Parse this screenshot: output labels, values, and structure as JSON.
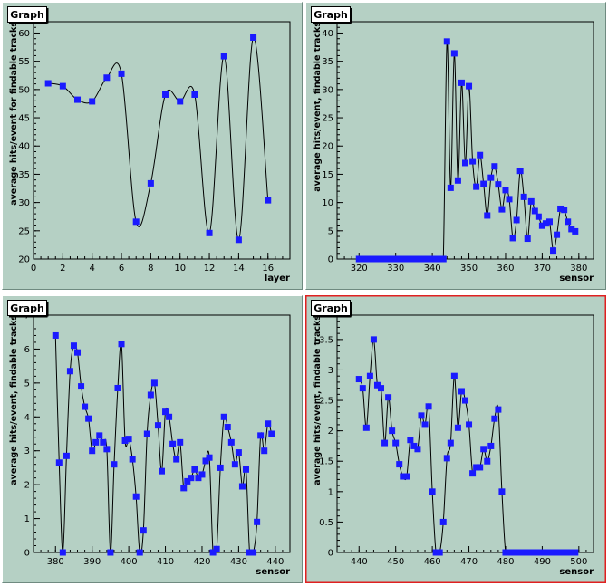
{
  "colors": {
    "pad_bg": "#b5d0c4",
    "frame_bg": "#ffffff",
    "marker": "#1a1aff",
    "line": "#000000",
    "selected_border": "#e02020"
  },
  "chart_data": [
    {
      "type": "line",
      "title": "Graph",
      "xlabel": "layer",
      "ylabel": "average hits/event for findable tracks",
      "xlim": [
        0,
        17.5
      ],
      "ylim": [
        20,
        62
      ],
      "xticks": [
        0,
        2,
        4,
        6,
        8,
        10,
        12,
        14,
        16
      ],
      "yticks": [
        20,
        25,
        30,
        35,
        40,
        45,
        50,
        55,
        60
      ],
      "selected": false,
      "x": [
        1,
        2,
        3,
        4,
        5,
        6,
        7,
        8,
        9,
        10,
        11,
        12,
        13,
        14,
        15,
        16
      ],
      "y": [
        51.1,
        50.6,
        48.2,
        47.9,
        52.1,
        52.8,
        26.6,
        33.4,
        49.1,
        47.9,
        49.1,
        24.6,
        55.9,
        23.4,
        59.2,
        30.4
      ]
    },
    {
      "type": "line",
      "title": "Graph",
      "xlabel": "sensor",
      "ylabel": "average hits/event, findable tracks",
      "xlim": [
        314,
        384
      ],
      "ylim": [
        0,
        42
      ],
      "xticks": [
        320,
        330,
        340,
        350,
        360,
        370,
        380
      ],
      "yticks": [
        0,
        5,
        10,
        15,
        20,
        25,
        30,
        35,
        40
      ],
      "selected": false,
      "x": [
        320,
        321,
        322,
        323,
        324,
        325,
        326,
        327,
        328,
        329,
        330,
        331,
        332,
        333,
        334,
        335,
        336,
        337,
        338,
        339,
        340,
        341,
        342,
        343,
        344,
        345,
        346,
        347,
        348,
        349,
        350,
        351,
        352,
        353,
        354,
        355,
        356,
        357,
        358,
        359,
        360,
        361,
        362,
        363,
        364,
        365,
        366,
        367,
        368,
        369,
        370,
        371,
        372,
        373,
        374,
        375,
        376,
        377,
        378,
        379
      ],
      "y": [
        0,
        0,
        0,
        0,
        0,
        0,
        0,
        0,
        0,
        0,
        0,
        0,
        0,
        0,
        0,
        0,
        0,
        0,
        0,
        0,
        0,
        0,
        0,
        0,
        38.5,
        12.6,
        36.4,
        13.9,
        31.2,
        17.0,
        30.6,
        17.3,
        12.8,
        18.4,
        13.3,
        7.7,
        14.4,
        16.4,
        13.2,
        8.8,
        12.2,
        10.6,
        3.7,
        6.9,
        15.6,
        11.0,
        3.6,
        10.2,
        8.5,
        7.5,
        5.9,
        6.3,
        6.6,
        1.5,
        4.3,
        8.9,
        8.7,
        6.6,
        5.3,
        4.9
      ]
    },
    {
      "type": "line",
      "title": "Graph",
      "xlabel": "sensor",
      "ylabel": "average hits/event, findable tracks",
      "xlim": [
        374,
        444
      ],
      "ylim": [
        0,
        7
      ],
      "xticks": [
        380,
        390,
        400,
        410,
        420,
        430,
        440
      ],
      "yticks": [
        0,
        1,
        2,
        3,
        4,
        5,
        6,
        7
      ],
      "selected": false,
      "x": [
        380,
        381,
        382,
        383,
        384,
        385,
        386,
        387,
        388,
        389,
        390,
        391,
        392,
        393,
        394,
        395,
        396,
        397,
        398,
        399,
        400,
        401,
        402,
        403,
        404,
        405,
        406,
        407,
        408,
        409,
        410,
        411,
        412,
        413,
        414,
        415,
        416,
        417,
        418,
        419,
        420,
        421,
        422,
        423,
        424,
        425,
        426,
        427,
        428,
        429,
        430,
        431,
        432,
        433,
        434,
        435,
        436,
        437,
        438,
        439
      ],
      "y": [
        6.4,
        2.65,
        0.0,
        2.85,
        5.35,
        6.1,
        5.9,
        4.9,
        4.3,
        3.95,
        3.0,
        3.25,
        3.45,
        3.25,
        3.05,
        0.0,
        2.6,
        4.85,
        6.15,
        3.3,
        3.35,
        2.75,
        1.65,
        0.0,
        0.65,
        3.5,
        4.65,
        5.0,
        3.75,
        2.4,
        4.15,
        4.0,
        3.2,
        2.75,
        3.25,
        1.9,
        2.1,
        2.2,
        2.45,
        2.2,
        2.3,
        2.7,
        2.8,
        0.0,
        0.1,
        2.5,
        4.0,
        3.7,
        3.25,
        2.6,
        2.95,
        1.95,
        2.45,
        0.0,
        0.0,
        0.9,
        3.45,
        3.0,
        3.8,
        3.5
      ]
    },
    {
      "type": "line",
      "title": "Graph",
      "xlabel": "sensor",
      "ylabel": "average hits/event, findable tracks",
      "xlim": [
        434,
        504
      ],
      "ylim": [
        0,
        3.9
      ],
      "xticks": [
        440,
        450,
        460,
        470,
        480,
        490,
        500
      ],
      "yticks": [
        0,
        0.5,
        1,
        1.5,
        2,
        2.5,
        3,
        3.5
      ],
      "selected": true,
      "x": [
        440,
        441,
        442,
        443,
        444,
        445,
        446,
        447,
        448,
        449,
        450,
        451,
        452,
        453,
        454,
        455,
        456,
        457,
        458,
        459,
        460,
        461,
        462,
        463,
        464,
        465,
        466,
        467,
        468,
        469,
        470,
        471,
        472,
        473,
        474,
        475,
        476,
        477,
        478,
        479,
        480,
        481,
        482,
        483,
        484,
        485,
        486,
        487,
        488,
        489,
        490,
        491,
        492,
        493,
        494,
        495,
        496,
        497,
        498,
        499
      ],
      "y": [
        2.85,
        2.7,
        2.05,
        2.9,
        3.5,
        2.75,
        2.7,
        1.8,
        2.55,
        2.0,
        1.8,
        1.45,
        1.25,
        1.25,
        1.85,
        1.75,
        1.7,
        2.25,
        2.1,
        2.4,
        1.0,
        0.0,
        0.0,
        0.5,
        1.55,
        1.8,
        2.9,
        2.05,
        2.65,
        2.5,
        2.1,
        1.3,
        1.4,
        1.4,
        1.7,
        1.5,
        1.75,
        2.2,
        2.35,
        1.0,
        0,
        0,
        0,
        0,
        0,
        0,
        0,
        0,
        0,
        0,
        0,
        0,
        0,
        0,
        0,
        0,
        0,
        0,
        0,
        0
      ]
    }
  ]
}
